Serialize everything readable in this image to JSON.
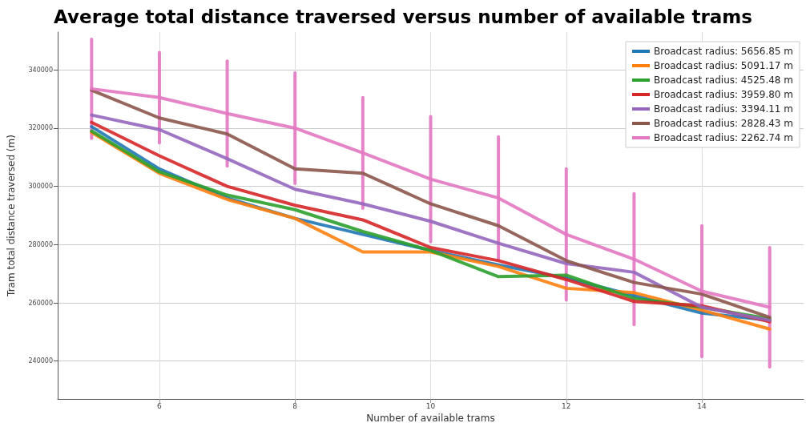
{
  "chart_data": {
    "type": "line",
    "title": "Average total distance traversed versus number of available trams",
    "xlabel": "Number of available trams",
    "ylabel": "Tram total distance traversed (m)",
    "x": [
      5,
      6,
      7,
      8,
      9,
      10,
      11,
      12,
      13,
      14,
      15
    ],
    "xlim": [
      4.5,
      15.5
    ],
    "xticks": [
      6,
      8,
      10,
      12,
      14
    ],
    "ylim": [
      227000,
      353000
    ],
    "yticks": [
      240000,
      260000,
      280000,
      300000,
      320000,
      340000
    ],
    "grid": true,
    "legend": "top right",
    "marker": "none",
    "line_style": "solid",
    "series": [
      {
        "name": "Broadcast radius: 5656.85 m",
        "color": "#1f77b4",
        "values": [
          320500,
          306000,
          296000,
          289000,
          283500,
          278000,
          273000,
          268500,
          262500,
          256500,
          254000
        ]
      },
      {
        "name": "Broadcast radius: 5091.17 m",
        "color": "#ff7f0e",
        "values": [
          318500,
          304500,
          295500,
          289000,
          277500,
          277500,
          272500,
          265000,
          263500,
          257500,
          251000
        ]
      },
      {
        "name": "Broadcast radius: 4525.48 m",
        "color": "#2ca02c",
        "values": [
          319000,
          305000,
          297000,
          292000,
          284500,
          278000,
          269000,
          269500,
          261500,
          258500,
          254500
        ]
      },
      {
        "name": "Broadcast radius: 3959.80 m",
        "color": "#d62728",
        "values": [
          322000,
          310500,
          300000,
          293500,
          288500,
          279000,
          274500,
          268000,
          260500,
          259000,
          253500
        ]
      },
      {
        "name": "Broadcast radius: 3394.11 m",
        "color": "#9467bd",
        "values": [
          324500,
          319500,
          309500,
          299000,
          294000,
          288000,
          280500,
          273500,
          270500,
          258500,
          254000
        ]
      },
      {
        "name": "Broadcast radius: 2828.43 m",
        "color": "#8c564b",
        "values": [
          333000,
          323500,
          318000,
          306000,
          304500,
          294000,
          286500,
          274500,
          267000,
          263000,
          255000
        ]
      },
      {
        "name": "Broadcast radius: 2262.74 m",
        "color": "#e377c2",
        "values": [
          333500,
          330500,
          325000,
          320000,
          311500,
          302500,
          296000,
          283500,
          275000,
          264000,
          258500
        ],
        "errors": [
          17000,
          15500,
          18000,
          19000,
          19000,
          21500,
          21000,
          22500,
          22500,
          22500,
          20500
        ]
      }
    ]
  }
}
